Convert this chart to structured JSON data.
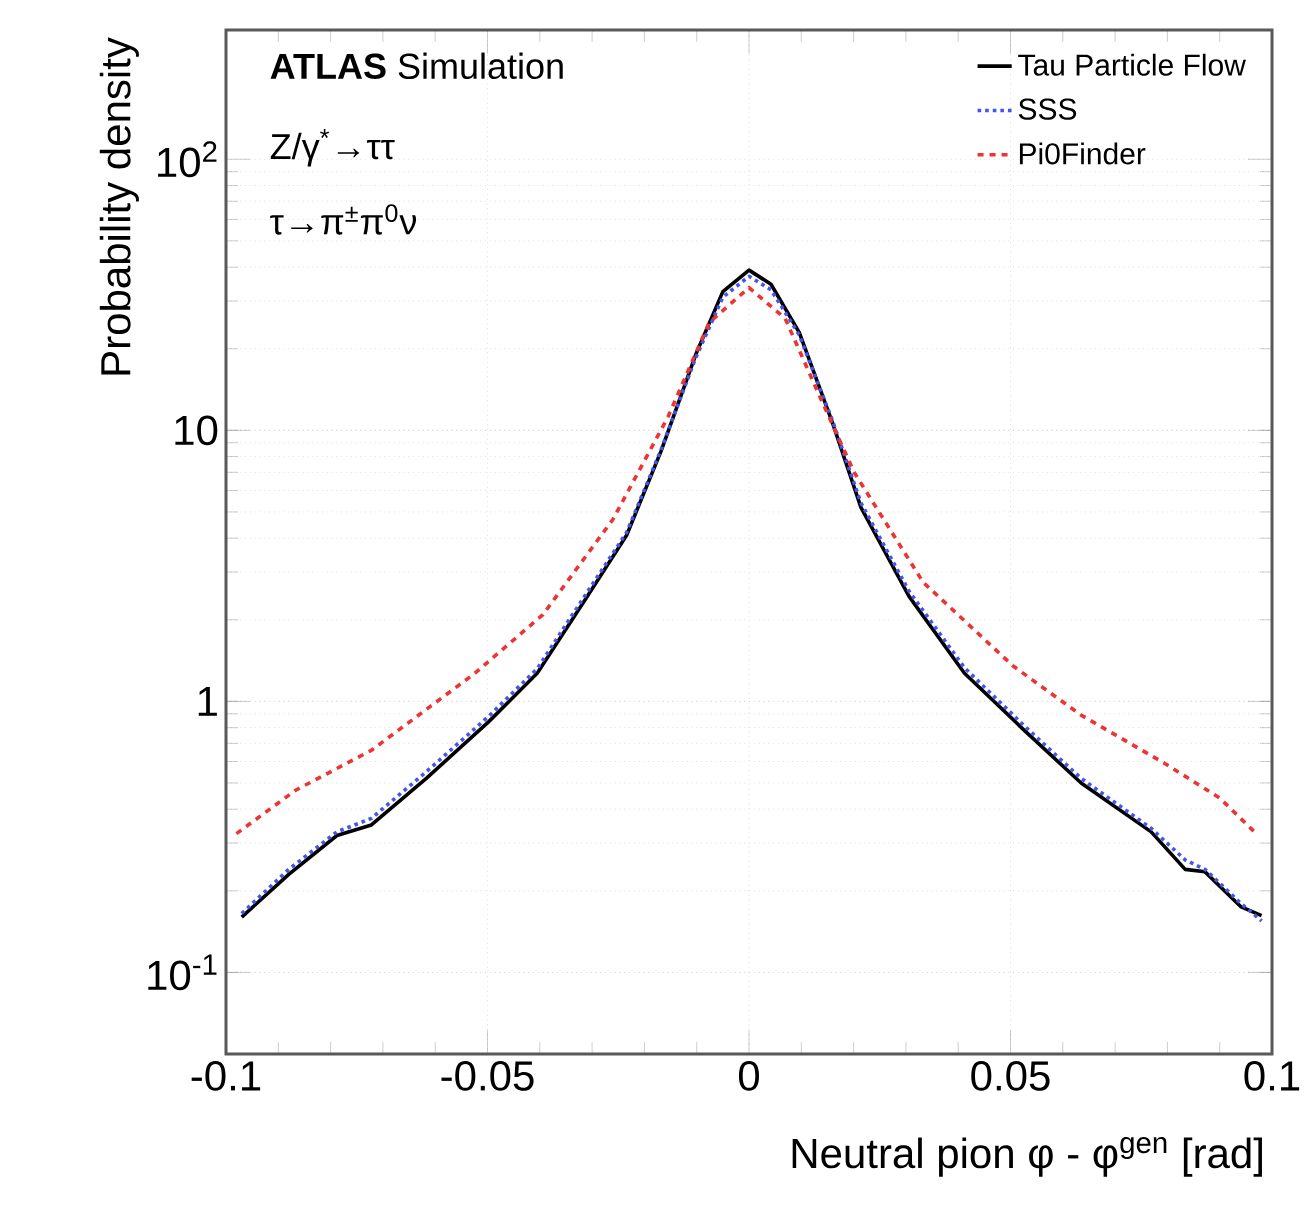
{
  "chart_data": {
    "type": "line",
    "xlabel": "Neutral pion φ - φ$^{gen}$ [rad]",
    "ylabel": "Probability density",
    "annotations": [
      "**ATLAS** Simulation",
      "Z/γ$^{*}$→ττ",
      "τ→π$^{±}$π$^{0}$ν"
    ],
    "x": [
      -0.097,
      -0.088,
      -0.0788,
      -0.0722,
      -0.0617,
      -0.0498,
      -0.0405,
      -0.0314,
      -0.0234,
      -0.0168,
      -0.0102,
      -0.005,
      0,
      0.0042,
      0.0096,
      0.016,
      0.0214,
      0.0306,
      0.0412,
      0.053,
      0.0635,
      0.0769,
      0.0834,
      0.0872,
      0.094,
      0.098
    ],
    "series": [
      {
        "name": "Tau Particle Flow",
        "color": "#000000",
        "line_style": "solid",
        "values": [
          0.16,
          0.23,
          0.32,
          0.35,
          0.52,
          0.84,
          1.27,
          2.36,
          4.1,
          8.4,
          19,
          32.5,
          39,
          34.6,
          23,
          10.6,
          5.2,
          2.44,
          1.27,
          0.77,
          0.5,
          0.33,
          0.24,
          0.235,
          0.175,
          0.162
        ]
      },
      {
        "name": "SSS",
        "color": "#4455ee",
        "line_style": "dotted",
        "values": [
          0.165,
          0.24,
          0.33,
          0.37,
          0.55,
          0.88,
          1.32,
          2.45,
          4.2,
          8.5,
          18.5,
          31,
          37,
          33,
          22.5,
          10.8,
          5.4,
          2.55,
          1.33,
          0.8,
          0.52,
          0.34,
          0.26,
          0.24,
          0.18,
          0.155
        ]
      },
      {
        "name": "Pi0Finder",
        "color": "#ee3333",
        "line_style": "dashed",
        "x": [
          -0.098,
          -0.0867,
          -0.0722,
          -0.0524,
          -0.0394,
          -0.026,
          -0.0155,
          -0.0076,
          0,
          0.0069,
          0.0134,
          0.0201,
          0.0333,
          0.0505,
          0.0635,
          0.0795,
          0.09,
          0.097
        ],
        "values": [
          0.325,
          0.47,
          0.66,
          1.27,
          2.09,
          4.7,
          11.2,
          25,
          33.6,
          25.9,
          13.5,
          7.0,
          2.75,
          1.35,
          0.89,
          0.59,
          0.44,
          0.325
        ]
      }
    ],
    "xlim": [
      -0.1,
      0.1
    ],
    "xticks": [
      -0.1,
      -0.05,
      0,
      0.05,
      0.1
    ],
    "ylim": [
      0.05,
      300
    ],
    "yticks": [
      {
        "value": 0.1,
        "label": "10$^{-1}$"
      },
      1,
      10,
      {
        "value": 100,
        "label": "10$^{2}$"
      }
    ],
    "log": "y",
    "grid": true,
    "legend": "top right"
  }
}
